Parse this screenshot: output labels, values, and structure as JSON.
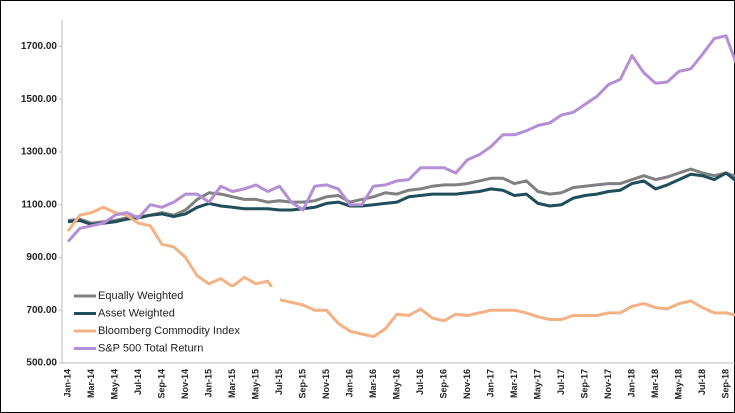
{
  "chart_data": {
    "type": "line",
    "categories": [
      "Jan-14",
      null,
      "Mar-14",
      null,
      "May-14",
      null,
      "Jul-14",
      null,
      "Sep-14",
      null,
      "Nov-14",
      null,
      "Jan-15",
      null,
      "Mar-15",
      null,
      "May-15",
      null,
      "Jul-15",
      null,
      "Sep-15",
      null,
      "Nov-15",
      null,
      "Jan-16",
      null,
      "Mar-16",
      null,
      "May-16",
      null,
      "Jul-16",
      null,
      "Sep-16",
      null,
      "Nov-16",
      null,
      "Jan-17",
      null,
      "Mar-17",
      null,
      "May-17",
      null,
      "Jul-17",
      null,
      "Sep-17",
      null,
      "Nov-17",
      null,
      "Jan-18",
      null,
      "Mar-18",
      null,
      "May-18",
      null,
      "Jul-18",
      null,
      "Sep-18",
      null
    ],
    "series": [
      {
        "name": "Equally Weighted",
        "color": "#808080",
        "values": [
          1040,
          1045,
          1030,
          1035,
          1040,
          1050,
          1055,
          1060,
          1070,
          1060,
          1080,
          1120,
          1145,
          1140,
          1130,
          1120,
          1120,
          1110,
          1115,
          1110,
          1110,
          1115,
          1130,
          1135,
          1110,
          1120,
          1130,
          1145,
          1140,
          1155,
          1160,
          1170,
          1175,
          1175,
          1180,
          1190,
          1200,
          1200,
          1180,
          1190,
          1150,
          1140,
          1145,
          1165,
          1170,
          1175,
          1180,
          1180,
          1195,
          1210,
          1195,
          1205,
          1220,
          1235,
          1220,
          1210,
          1220,
          1205
        ]
      },
      {
        "name": "Asset Weighted",
        "color": "#1f4e5a",
        "values": [
          1035,
          1040,
          1025,
          1030,
          1035,
          1045,
          1050,
          1060,
          1065,
          1055,
          1065,
          1090,
          1105,
          1095,
          1090,
          1085,
          1085,
          1085,
          1080,
          1080,
          1085,
          1090,
          1105,
          1110,
          1095,
          1095,
          1100,
          1105,
          1110,
          1130,
          1135,
          1140,
          1140,
          1140,
          1145,
          1150,
          1160,
          1155,
          1135,
          1140,
          1105,
          1095,
          1100,
          1125,
          1135,
          1140,
          1150,
          1155,
          1180,
          1190,
          1160,
          1175,
          1195,
          1215,
          1210,
          1195,
          1220,
          1185
        ]
      },
      {
        "name": "Bloomberg Commodity Index",
        "color": "#f4b183",
        "values": [
          1000,
          1060,
          1070,
          1090,
          1070,
          1060,
          1030,
          1020,
          950,
          940,
          900,
          830,
          800,
          820,
          790,
          825,
          800,
          810,
          740,
          730,
          720,
          700,
          700,
          650,
          620,
          610,
          600,
          630,
          685,
          680,
          705,
          670,
          660,
          685,
          680,
          690,
          700,
          700,
          700,
          690,
          675,
          665,
          665,
          680,
          680,
          680,
          690,
          690,
          715,
          725,
          710,
          705,
          725,
          735,
          710,
          690,
          690,
          680
        ]
      },
      {
        "name": "S&P 500 Total Return",
        "color": "#b48fd6",
        "values": [
          960,
          1010,
          1020,
          1030,
          1060,
          1070,
          1050,
          1100,
          1090,
          1110,
          1140,
          1140,
          1110,
          1170,
          1150,
          1160,
          1175,
          1150,
          1170,
          1110,
          1080,
          1170,
          1175,
          1160,
          1100,
          1100,
          1170,
          1175,
          1190,
          1195,
          1240,
          1240,
          1240,
          1220,
          1270,
          1290,
          1320,
          1365,
          1365,
          1380,
          1400,
          1410,
          1440,
          1450,
          1480,
          1510,
          1555,
          1575,
          1665,
          1600,
          1560,
          1565,
          1605,
          1615,
          1670,
          1730,
          1740,
          1620
        ]
      }
    ],
    "ylim": [
      500,
      1800
    ],
    "yticks": [
      {
        "value": 500,
        "label": "500.00"
      },
      {
        "value": 700,
        "label": "700.00"
      },
      {
        "value": 900,
        "label": "900.00"
      },
      {
        "value": 1100,
        "label": "1100.00"
      },
      {
        "value": 1300,
        "label": "1300.00"
      },
      {
        "value": 1500,
        "label": "1500.00"
      },
      {
        "value": 1700,
        "label": "1700.00"
      }
    ],
    "legend": "lower-left"
  }
}
